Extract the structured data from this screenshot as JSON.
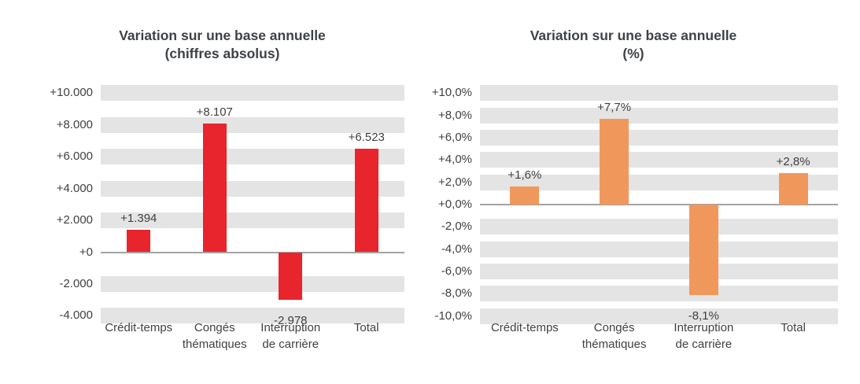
{
  "page": {
    "background_color": "#ffffff"
  },
  "chart_data": [
    {
      "type": "bar",
      "title": "Variation sur une base annuelle",
      "subtitle": "(chiffres absolus)",
      "categories": [
        "Crédit-temps",
        "Congés thématiques",
        "Interruption de carrière",
        "Total"
      ],
      "category_label_lines": [
        [
          "Crédit-temps"
        ],
        [
          "Congés",
          "thématiques"
        ],
        [
          "Interruption",
          "de carrière"
        ],
        [
          "Total"
        ]
      ],
      "values": [
        1394,
        8107,
        -2978,
        6523
      ],
      "data_labels": [
        "+1.394",
        "+8.107",
        "-2.978",
        "+6.523"
      ],
      "y_tick_values": [
        10000,
        8000,
        6000,
        4000,
        2000,
        0,
        -2000,
        -4000
      ],
      "y_tick_labels": [
        "+10.000",
        "+8.000",
        "+6.000",
        "+4.000",
        "+2.000",
        "+0",
        "-2.000",
        "-4.000"
      ],
      "ylim": [
        -4000,
        10000
      ],
      "xlabel": "",
      "ylabel": "",
      "legend": "none",
      "grid": "horizontal-bands",
      "bar_color": "#e8242d",
      "grid_band_color": "#e4e4e4",
      "axis_line_color": "#a3a3a3",
      "text_color": "#404040"
    },
    {
      "type": "bar",
      "title": "Variation sur une base annuelle",
      "subtitle": "(%)",
      "categories": [
        "Crédit-temps",
        "Congés thématiques",
        "Interruption de carrière",
        "Total"
      ],
      "category_label_lines": [
        [
          "Crédit-temps"
        ],
        [
          "Congés",
          "thématiques"
        ],
        [
          "Interruption",
          "de carrière"
        ],
        [
          "Total"
        ]
      ],
      "values": [
        1.6,
        7.7,
        -8.1,
        2.8
      ],
      "data_labels": [
        "+1,6%",
        "+7,7%",
        "-8,1%",
        "+2,8%"
      ],
      "y_tick_values": [
        10,
        8,
        6,
        4,
        2,
        0,
        -2,
        -4,
        -6,
        -8,
        -10
      ],
      "y_tick_labels": [
        "+10,0%",
        "+8,0%",
        "+6,0%",
        "+4,0%",
        "+2,0%",
        "+0,0%",
        "-2,0%",
        "-4,0%",
        "-6,0%",
        "-8,0%",
        "-10,0%"
      ],
      "ylim": [
        -10,
        10
      ],
      "xlabel": "",
      "ylabel": "",
      "legend": "none",
      "grid": "horizontal-bands",
      "bar_color": "#f0985c",
      "grid_band_color": "#e4e4e4",
      "axis_line_color": "#a3a3a3",
      "text_color": "#404040"
    }
  ]
}
